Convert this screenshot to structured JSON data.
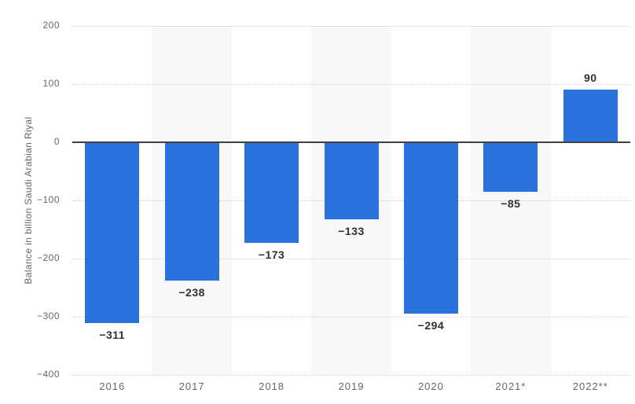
{
  "page": {
    "background_color": "#ffffff"
  },
  "chart_data": {
    "type": "bar",
    "title": "",
    "xlabel": "",
    "ylabel": "Balance in billion Saudi Arabian Riyal",
    "categories": [
      "2016",
      "2017",
      "2018",
      "2019",
      "2020",
      "2021*",
      "2022**"
    ],
    "values": [
      -311,
      -238,
      -173,
      -133,
      -294,
      -85,
      90
    ],
    "value_labels": [
      "−311",
      "−238",
      "−173",
      "−133",
      "−294",
      "−85",
      "90"
    ],
    "ylim": [
      -400,
      200
    ],
    "yticks": [
      200,
      100,
      0,
      -100,
      -200,
      -300,
      -400
    ],
    "ytick_labels": [
      "200",
      "100",
      "0",
      "−100",
      "−200",
      "−300",
      "−400"
    ],
    "grid": "horizontal-dotted",
    "legend": "none",
    "stripes": "alternating-columns",
    "colors": {
      "bar": "#2b73dc",
      "stripe": "#f8f8f8",
      "gridline": "#cccccc",
      "zero_line": "#404040",
      "value_label": "#303030",
      "axis_text": "#666666",
      "background": "#ffffff"
    }
  }
}
